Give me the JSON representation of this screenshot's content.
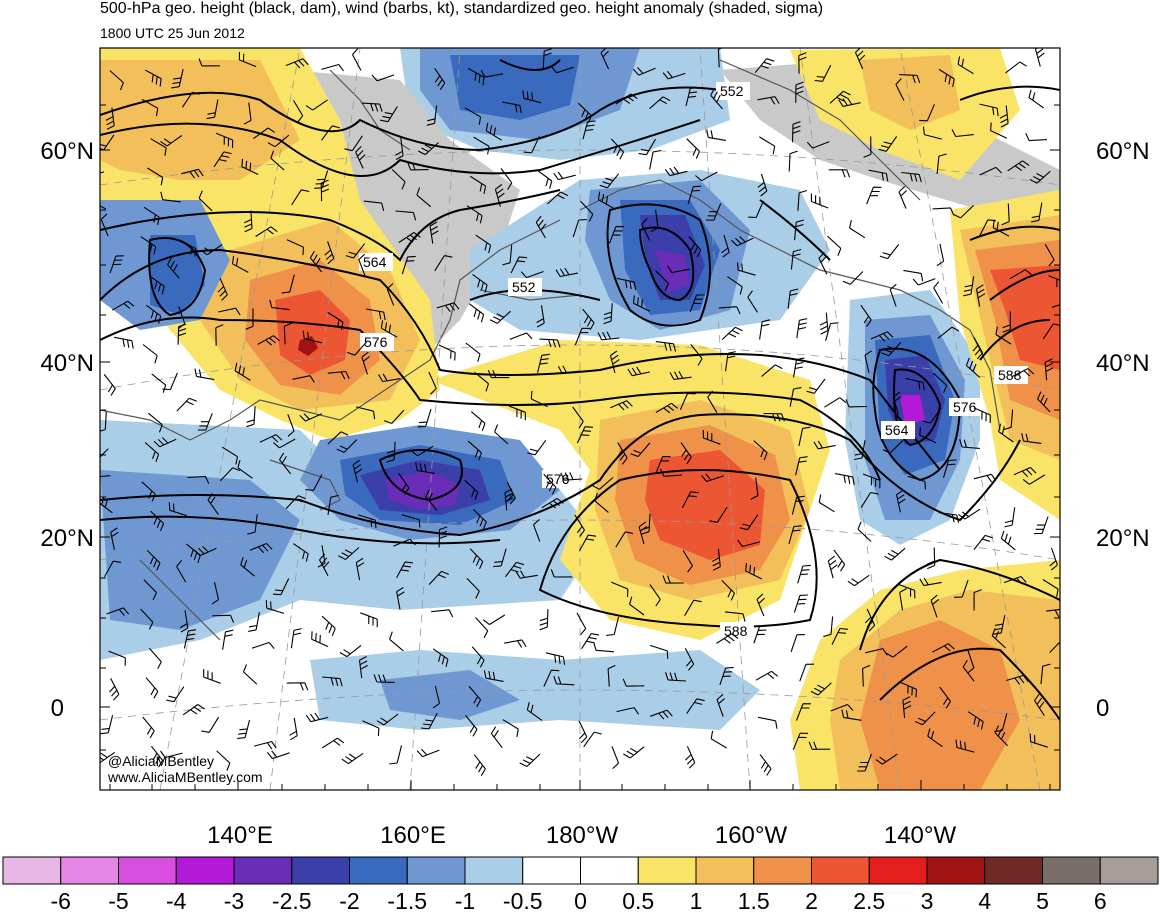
{
  "header": {
    "title": "500-hPa geo. height (black, dam), wind (barbs, kt), standardized geo. height anomaly (shaded, sigma)",
    "valid_time": "1800 UTC 25 Jun 2012"
  },
  "map": {
    "lat_labels": [
      "60°N",
      "40°N",
      "20°N",
      "0"
    ],
    "lon_labels": [
      "140°E",
      "160°E",
      "180°W",
      "160°W",
      "140°W"
    ],
    "contour_labels": [
      "552",
      "552",
      "564",
      "576",
      "564",
      "576",
      "588",
      "576",
      "588"
    ],
    "credit": [
      "@AliciaMBentley",
      "www.AliciaMBentley.com"
    ]
  },
  "colorbar": {
    "labels": [
      "-6",
      "-5",
      "-4",
      "-3",
      "-2.5",
      "-2",
      "-1.5",
      "-1",
      "-0.5",
      "0",
      "0.5",
      "1",
      "1.5",
      "2",
      "2.5",
      "3",
      "4",
      "5",
      "6"
    ],
    "colors": [
      "#e8b7e6",
      "#e586e4",
      "#d84fe0",
      "#b21ad8",
      "#6a2db8",
      "#3a3fa9",
      "#3a6abe",
      "#6f98d3",
      "#aacde8",
      "#ffffff",
      "#ffffff",
      "#f9e467",
      "#f3bf5a",
      "#f0914a",
      "#ec5632",
      "#e31e1c",
      "#a11212",
      "#6f2a26",
      "#7a6e6b",
      "#a89c9a"
    ]
  }
}
